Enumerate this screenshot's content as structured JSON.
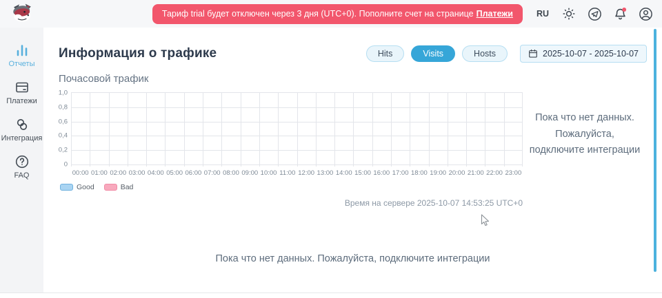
{
  "header": {
    "banner": {
      "text": "Тариф trial будет отключен через 3 дня (UTC+0). Пополните счет на странице",
      "link_label": "Платежи"
    },
    "language": "RU"
  },
  "sidebar": {
    "items": [
      {
        "label": "Отчеты",
        "icon": "bar-chart-icon",
        "active": true
      },
      {
        "label": "Платежи",
        "icon": "payment-card-icon",
        "active": false
      },
      {
        "label": "Интеграция",
        "icon": "integration-link-icon",
        "active": false
      },
      {
        "label": "FAQ",
        "icon": "question-icon",
        "active": false
      }
    ]
  },
  "main": {
    "title": "Информация о трафике",
    "tabs": [
      {
        "label": "Hits",
        "active": false
      },
      {
        "label": "Visits",
        "active": true
      },
      {
        "label": "Hosts",
        "active": false
      }
    ],
    "date_range": "2025-10-07 - 2025-10-07",
    "section_title": "Почасовой трафик",
    "empty_side_text": "Пока что нет данных. Пожалуйста, подключите интеграции",
    "server_time": "Время на сервере 2025-10-07 14:53:25 UTC+0",
    "empty_bottom_text": "Пока что нет данных. Пожалуйста, подключите интеграции"
  },
  "chart_data": {
    "type": "bar",
    "title": "Почасовой трафик",
    "categories": [
      "00:00",
      "01:00",
      "02:00",
      "03:00",
      "04:00",
      "05:00",
      "06:00",
      "07:00",
      "08:00",
      "09:00",
      "10:00",
      "11:00",
      "12:00",
      "13:00",
      "14:00",
      "15:00",
      "16:00",
      "17:00",
      "18:00",
      "19:00",
      "20:00",
      "21:00",
      "22:00",
      "23:00"
    ],
    "series": [
      {
        "name": "Good",
        "values": [],
        "color": "#a9d4f2",
        "border": "#6fb1de"
      },
      {
        "name": "Bad",
        "values": [],
        "color": "#f8a9bd",
        "border": "#f08ba6"
      }
    ],
    "yticks": [
      "0",
      "0,2",
      "0,4",
      "0,6",
      "0,8",
      "1,0"
    ],
    "ylim": [
      0,
      1
    ],
    "grid": true,
    "legend_position": "bottom-left",
    "no_data": true
  },
  "colors": {
    "accent_blue": "#36a6d8",
    "banner_red": "#f2566c",
    "scrollbar_blue": "#4cb2de",
    "sidebar_active": "#58b0dd",
    "grid_line": "#e3e5ea"
  }
}
